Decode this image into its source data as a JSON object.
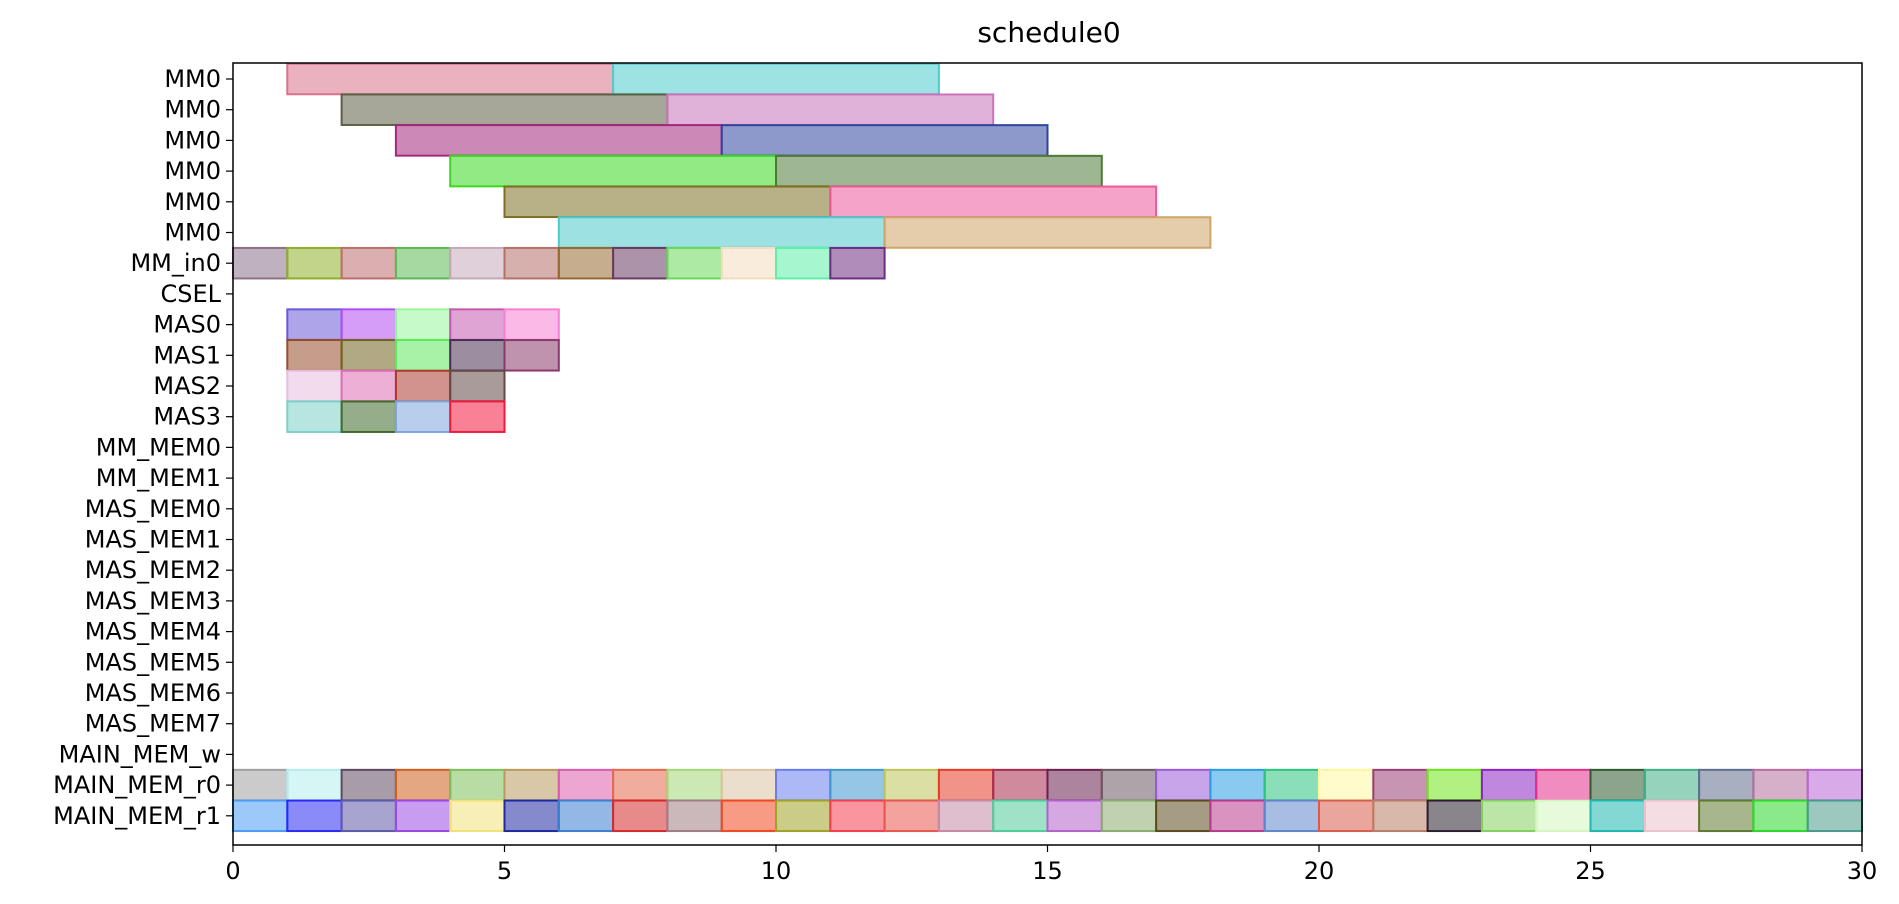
{
  "chart_data": {
    "type": "gantt",
    "title": "schedule0",
    "xlabel": "",
    "ylabel": "",
    "xlim": [
      0,
      30
    ],
    "x_ticks": [
      0,
      5,
      10,
      15,
      20,
      25,
      30
    ],
    "grid": false,
    "rows": [
      "MM0",
      "MM0",
      "MM0",
      "MM0",
      "MM0",
      "MM0",
      "MM_in0",
      "CSEL",
      "MAS0",
      "MAS1",
      "MAS2",
      "MAS3",
      "MM_MEM0",
      "MM_MEM1",
      "MAS_MEM0",
      "MAS_MEM1",
      "MAS_MEM2",
      "MAS_MEM3",
      "MAS_MEM4",
      "MAS_MEM5",
      "MAS_MEM6",
      "MAS_MEM7",
      "MAIN_MEM_w",
      "MAIN_MEM_r0",
      "MAIN_MEM_r1"
    ],
    "tasks": [
      {
        "row": 0,
        "start": 1,
        "end": 7,
        "color": "#d9738a"
      },
      {
        "row": 0,
        "start": 7,
        "end": 13,
        "color": "#4fcccc"
      },
      {
        "row": 1,
        "start": 2,
        "end": 8,
        "color": "#5c5f44"
      },
      {
        "row": 1,
        "start": 8,
        "end": 14,
        "color": "#c973ba"
      },
      {
        "row": 2,
        "start": 3,
        "end": 9,
        "color": "#a3287e"
      },
      {
        "row": 2,
        "start": 9,
        "end": 15,
        "color": "#2f44a0"
      },
      {
        "row": 3,
        "start": 4,
        "end": 10,
        "color": "#39d91f"
      },
      {
        "row": 3,
        "start": 10,
        "end": 16,
        "color": "#4f7a36"
      },
      {
        "row": 4,
        "start": 5,
        "end": 11,
        "color": "#7d7022"
      },
      {
        "row": 4,
        "start": 11,
        "end": 17,
        "color": "#ec5a9a"
      },
      {
        "row": 5,
        "start": 6,
        "end": 12,
        "color": "#4fc9cc"
      },
      {
        "row": 5,
        "start": 12,
        "end": 18,
        "color": "#cfa468"
      },
      {
        "row": 6,
        "start": 0,
        "end": 1,
        "color": "#8a7186"
      },
      {
        "row": 6,
        "start": 1,
        "end": 2,
        "color": "#8fae2a"
      },
      {
        "row": 6,
        "start": 2,
        "end": 3,
        "color": "#bd6d6d"
      },
      {
        "row": 6,
        "start": 3,
        "end": 4,
        "color": "#5cb955"
      },
      {
        "row": 6,
        "start": 4,
        "end": 5,
        "color": "#c5a9b9"
      },
      {
        "row": 6,
        "start": 5,
        "end": 6,
        "color": "#b5706a"
      },
      {
        "row": 6,
        "start": 6,
        "end": 7,
        "color": "#956930"
      },
      {
        "row": 6,
        "start": 7,
        "end": 8,
        "color": "#6a3a62"
      },
      {
        "row": 6,
        "start": 8,
        "end": 9,
        "color": "#6ad958"
      },
      {
        "row": 6,
        "start": 9,
        "end": 10,
        "color": "#f4dcc0"
      },
      {
        "row": 6,
        "start": 10,
        "end": 11,
        "color": "#5cf0a8"
      },
      {
        "row": 6,
        "start": 11,
        "end": 12,
        "color": "#6e2d82"
      },
      {
        "row": 8,
        "start": 1,
        "end": 2,
        "color": "#6a5ad9"
      },
      {
        "row": 8,
        "start": 2,
        "end": 3,
        "color": "#b24cf2"
      },
      {
        "row": 8,
        "start": 3,
        "end": 4,
        "color": "#98f59a"
      },
      {
        "row": 8,
        "start": 4,
        "end": 5,
        "color": "#c557b0"
      },
      {
        "row": 8,
        "start": 5,
        "end": 6,
        "color": "#f77fd4"
      },
      {
        "row": 9,
        "start": 1,
        "end": 2,
        "color": "#984a2a"
      },
      {
        "row": 9,
        "start": 2,
        "end": 3,
        "color": "#6f631e"
      },
      {
        "row": 9,
        "start": 3,
        "end": 4,
        "color": "#5ee85e"
      },
      {
        "row": 9,
        "start": 4,
        "end": 5,
        "color": "#4a2f54"
      },
      {
        "row": 9,
        "start": 5,
        "end": 6,
        "color": "#8a3a6a"
      },
      {
        "row": 10,
        "start": 1,
        "end": 2,
        "color": "#e6bddf"
      },
      {
        "row": 10,
        "start": 2,
        "end": 3,
        "color": "#de6eb4"
      },
      {
        "row": 10,
        "start": 3,
        "end": 4,
        "color": "#ac3a2e"
      },
      {
        "row": 10,
        "start": 4,
        "end": 5,
        "color": "#654848"
      },
      {
        "row": 11,
        "start": 1,
        "end": 2,
        "color": "#7cd0c8"
      },
      {
        "row": 11,
        "start": 2,
        "end": 3,
        "color": "#3f6a2a"
      },
      {
        "row": 11,
        "start": 3,
        "end": 4,
        "color": "#7ea6dc"
      },
      {
        "row": 11,
        "start": 4,
        "end": 5,
        "color": "#f2193f"
      },
      {
        "row": 23,
        "start": 0,
        "end": 1,
        "color": "#a0a0a0"
      },
      {
        "row": 23,
        "start": 1,
        "end": 2,
        "color": "#b5ecec"
      },
      {
        "row": 23,
        "start": 2,
        "end": 3,
        "color": "#5e4a60"
      },
      {
        "row": 23,
        "start": 3,
        "end": 4,
        "color": "#cf5f1a"
      },
      {
        "row": 23,
        "start": 4,
        "end": 5,
        "color": "#7cbf5a"
      },
      {
        "row": 23,
        "start": 5,
        "end": 6,
        "color": "#b89a5e"
      },
      {
        "row": 23,
        "start": 6,
        "end": 7,
        "color": "#db5cac"
      },
      {
        "row": 23,
        "start": 7,
        "end": 8,
        "color": "#e46a4e"
      },
      {
        "row": 23,
        "start": 8,
        "end": 9,
        "color": "#a2d779"
      },
      {
        "row": 23,
        "start": 9,
        "end": 10,
        "color": "#dcc3a4"
      },
      {
        "row": 23,
        "start": 10,
        "end": 11,
        "color": "#6a7df0"
      },
      {
        "row": 23,
        "start": 11,
        "end": 12,
        "color": "#3e98cf"
      },
      {
        "row": 23,
        "start": 12,
        "end": 13,
        "color": "#bfc45a"
      },
      {
        "row": 23,
        "start": 13,
        "end": 14,
        "color": "#e53a26"
      },
      {
        "row": 23,
        "start": 14,
        "end": 15,
        "color": "#a82a4e"
      },
      {
        "row": 23,
        "start": 15,
        "end": 16,
        "color": "#6a1f4e"
      },
      {
        "row": 23,
        "start": 16,
        "end": 17,
        "color": "#6a5a62"
      },
      {
        "row": 23,
        "start": 17,
        "end": 18,
        "color": "#9a5ad9"
      },
      {
        "row": 23,
        "start": 18,
        "end": 19,
        "color": "#2a9ce3"
      },
      {
        "row": 23,
        "start": 19,
        "end": 20,
        "color": "#2cc47e"
      },
      {
        "row": 23,
        "start": 20,
        "end": 21,
        "color": "#fff79e"
      },
      {
        "row": 23,
        "start": 21,
        "end": 22,
        "color": "#983e74"
      },
      {
        "row": 23,
        "start": 22,
        "end": 23,
        "color": "#6fe51c"
      },
      {
        "row": 23,
        "start": 23,
        "end": 24,
        "color": "#8a24c3"
      },
      {
        "row": 23,
        "start": 24,
        "end": 25,
        "color": "#e32e8a"
      },
      {
        "row": 23,
        "start": 25,
        "end": 26,
        "color": "#2f5a2e"
      },
      {
        "row": 23,
        "start": 26,
        "end": 27,
        "color": "#3fae86"
      },
      {
        "row": 23,
        "start": 27,
        "end": 28,
        "color": "#5e6e8e"
      },
      {
        "row": 23,
        "start": 28,
        "end": 29,
        "color": "#b56e9c"
      },
      {
        "row": 23,
        "start": 29,
        "end": 30,
        "color": "#b865d6"
      },
      {
        "row": 24,
        "start": 0,
        "end": 1,
        "color": "#4a9cf5"
      },
      {
        "row": 24,
        "start": 1,
        "end": 2,
        "color": "#2a2af2"
      },
      {
        "row": 24,
        "start": 2,
        "end": 3,
        "color": "#5e5aa8"
      },
      {
        "row": 24,
        "start": 3,
        "end": 4,
        "color": "#9a4ae3"
      },
      {
        "row": 24,
        "start": 4,
        "end": 5,
        "color": "#f0e178"
      },
      {
        "row": 24,
        "start": 5,
        "end": 6,
        "color": "#1f2aa0"
      },
      {
        "row": 24,
        "start": 6,
        "end": 7,
        "color": "#3a7ecf"
      },
      {
        "row": 24,
        "start": 7,
        "end": 8,
        "color": "#d62a2a"
      },
      {
        "row": 24,
        "start": 8,
        "end": 9,
        "color": "#9e7e84"
      },
      {
        "row": 24,
        "start": 9,
        "end": 10,
        "color": "#f0481f"
      },
      {
        "row": 24,
        "start": 10,
        "end": 11,
        "color": "#a0a226"
      },
      {
        "row": 24,
        "start": 11,
        "end": 12,
        "color": "#f23e4e"
      },
      {
        "row": 24,
        "start": 12,
        "end": 13,
        "color": "#e8584e"
      },
      {
        "row": 24,
        "start": 13,
        "end": 14,
        "color": "#c48aa4"
      },
      {
        "row": 24,
        "start": 14,
        "end": 15,
        "color": "#4ecc9a"
      },
      {
        "row": 24,
        "start": 15,
        "end": 16,
        "color": "#b460c9"
      },
      {
        "row": 24,
        "start": 16,
        "end": 17,
        "color": "#8aac6e"
      },
      {
        "row": 24,
        "start": 17,
        "end": 18,
        "color": "#5c4a1e"
      },
      {
        "row": 24,
        "start": 18,
        "end": 19,
        "color": "#b83a8e"
      },
      {
        "row": 24,
        "start": 19,
        "end": 20,
        "color": "#5e86c9"
      },
      {
        "row": 24,
        "start": 20,
        "end": 21,
        "color": "#d85c4a"
      },
      {
        "row": 24,
        "start": 21,
        "end": 22,
        "color": "#b97e68"
      },
      {
        "row": 24,
        "start": 22,
        "end": 23,
        "color": "#2a1f2e"
      },
      {
        "row": 24,
        "start": 23,
        "end": 24,
        "color": "#84d15e"
      },
      {
        "row": 24,
        "start": 24,
        "end": 25,
        "color": "#d6f5c0"
      },
      {
        "row": 24,
        "start": 25,
        "end": 26,
        "color": "#1fb8b0"
      },
      {
        "row": 24,
        "start": 26,
        "end": 27,
        "color": "#ecc2cc"
      },
      {
        "row": 24,
        "start": 27,
        "end": 28,
        "color": "#5e7a2e"
      },
      {
        "row": 24,
        "start": 28,
        "end": 29,
        "color": "#2ad92a"
      },
      {
        "row": 24,
        "start": 29,
        "end": 30,
        "color": "#4a9a8c"
      }
    ]
  }
}
